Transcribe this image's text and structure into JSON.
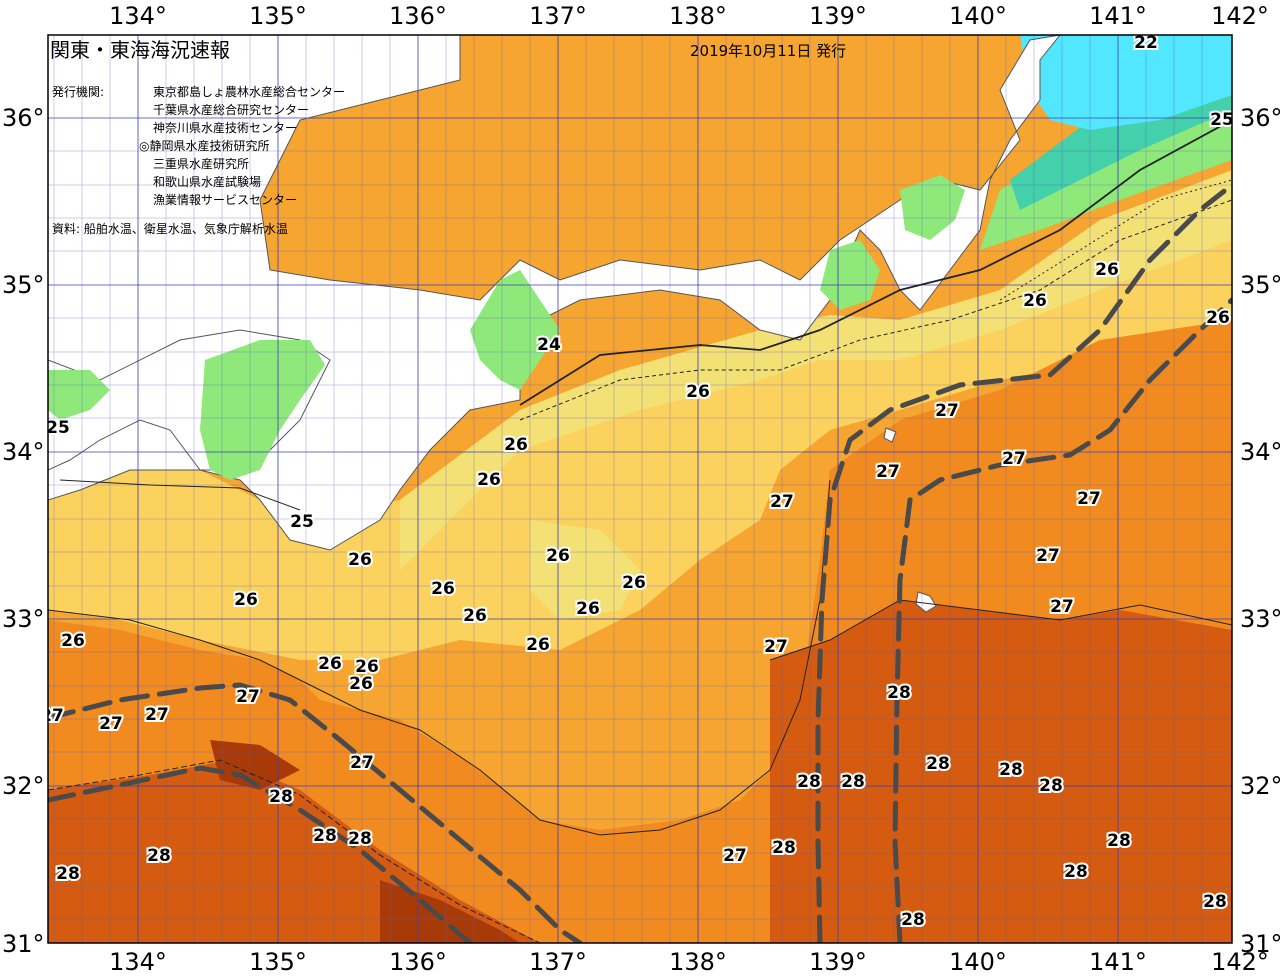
{
  "title": "関東・東海海況速報",
  "issue_date": "2019年10月11日 発行",
  "issuer_label": "発行機関:",
  "organizations": [
    "東京都島しょ農林水産総合センター",
    "千葉県水産総合研究センター",
    "神奈川県水産技術センター",
    "◎静岡県水産技術研究所",
    "三重県水産研究所",
    "和歌山県水産試験場",
    "漁業情報サービスセンター"
  ],
  "sources": "資料: 船舶水温、衛星水温、気象庁解析水温",
  "longitude_ticks": [
    "134°",
    "135°",
    "136°",
    "137°",
    "138°",
    "139°",
    "140°",
    "141°",
    "142°"
  ],
  "latitude_ticks": [
    "36°",
    "35°",
    "34°",
    "33°",
    "32°",
    "31°"
  ],
  "colors": {
    "t22": "#52e7ff",
    "t23": "#43d0aa",
    "t24": "#8ee87a",
    "t25": "#f4e176",
    "t26": "#fbd25d",
    "t26_5": "#f6a530",
    "t27": "#f18a1f",
    "t28": "#d45b0f",
    "t29": "#a83a08",
    "land": "#ffffff",
    "grid": "#3d3fb6",
    "kuroshio_axis": "#4a4a4a"
  },
  "isotherm_labels": [
    {
      "id": "l22",
      "text": "22"
    },
    {
      "id": "l25a",
      "text": "25"
    },
    {
      "id": "l25b",
      "text": "25"
    },
    {
      "id": "l25c",
      "text": "25"
    },
    {
      "id": "l24",
      "text": "24"
    },
    {
      "id": "l26a",
      "text": "26"
    },
    {
      "id": "l26b",
      "text": "26"
    },
    {
      "id": "l26c",
      "text": "26"
    },
    {
      "id": "l26d",
      "text": "26"
    },
    {
      "id": "l26e",
      "text": "26"
    },
    {
      "id": "l26f",
      "text": "26"
    },
    {
      "id": "l26g",
      "text": "26"
    },
    {
      "id": "l26h",
      "text": "26"
    },
    {
      "id": "l26i",
      "text": "26"
    },
    {
      "id": "l26j",
      "text": "26"
    },
    {
      "id": "l26k",
      "text": "26"
    },
    {
      "id": "l26l",
      "text": "26"
    },
    {
      "id": "l26m",
      "text": "26"
    },
    {
      "id": "l26n",
      "text": "26"
    },
    {
      "id": "l26o",
      "text": "26"
    },
    {
      "id": "l26p",
      "text": "26"
    },
    {
      "id": "l26q",
      "text": "26"
    },
    {
      "id": "l26r",
      "text": "26"
    },
    {
      "id": "l27a",
      "text": "27"
    },
    {
      "id": "l27b",
      "text": "27"
    },
    {
      "id": "l27c",
      "text": "27"
    },
    {
      "id": "l27d",
      "text": "27"
    },
    {
      "id": "l27e",
      "text": "27"
    },
    {
      "id": "l27f",
      "text": "27"
    },
    {
      "id": "l27g",
      "text": "27"
    },
    {
      "id": "l27h",
      "text": "27"
    },
    {
      "id": "l27i",
      "text": "27"
    },
    {
      "id": "l27j",
      "text": "27"
    },
    {
      "id": "l27k",
      "text": "27"
    },
    {
      "id": "l27l",
      "text": "27"
    },
    {
      "id": "l27m",
      "text": "27"
    },
    {
      "id": "l27n",
      "text": "27"
    },
    {
      "id": "l28a",
      "text": "28"
    },
    {
      "id": "l28b",
      "text": "28"
    },
    {
      "id": "l28c",
      "text": "28"
    },
    {
      "id": "l28d",
      "text": "28"
    },
    {
      "id": "l28e",
      "text": "28"
    },
    {
      "id": "l28f",
      "text": "28"
    },
    {
      "id": "l28g",
      "text": "28"
    },
    {
      "id": "l28h",
      "text": "28"
    },
    {
      "id": "l28i",
      "text": "28"
    },
    {
      "id": "l28j",
      "text": "28"
    },
    {
      "id": "l28k",
      "text": "28"
    },
    {
      "id": "l28l",
      "text": "28"
    },
    {
      "id": "l28m",
      "text": "28"
    },
    {
      "id": "l28n",
      "text": "28"
    },
    {
      "id": "l28o",
      "text": "28"
    },
    {
      "id": "l28p",
      "text": "28"
    }
  ]
}
